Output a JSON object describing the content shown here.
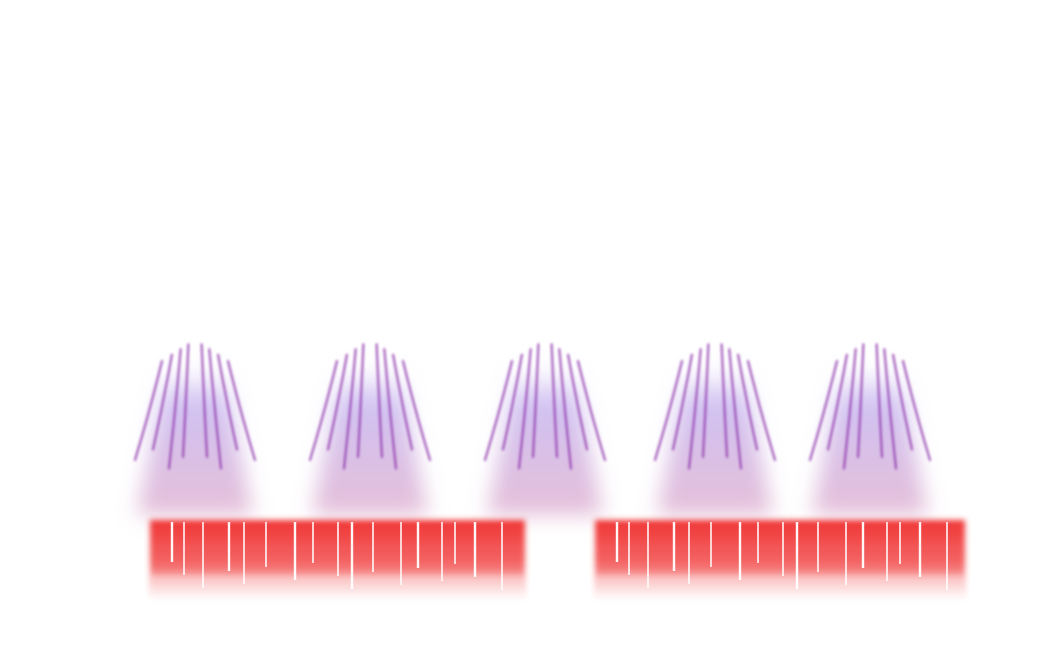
{
  "scene": {
    "background_color": "#ffffff",
    "glow_color_top": "#c8b6ef",
    "glow_color_bottom": "#e3b8d4",
    "streak_color": "#8a2fa8",
    "band_color": "#f03535",
    "band_stripe_color": "#ffffff",
    "glow_cluster_count": 5,
    "band_segment_count": 2
  }
}
